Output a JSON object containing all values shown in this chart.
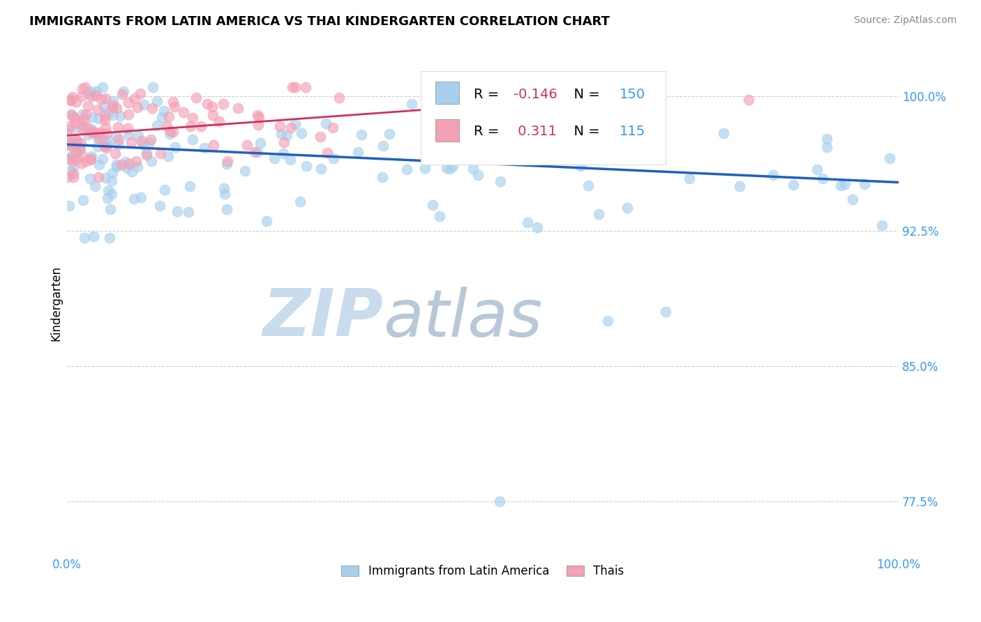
{
  "title": "IMMIGRANTS FROM LATIN AMERICA VS THAI KINDERGARTEN CORRELATION CHART",
  "source_text": "Source: ZipAtlas.com",
  "ylabel": "Kindergarten",
  "xlim": [
    0.0,
    1.0
  ],
  "ylim": [
    0.745,
    1.025
  ],
  "yticks": [
    0.775,
    0.85,
    0.925,
    1.0
  ],
  "ytick_labels": [
    "77.5%",
    "85.0%",
    "92.5%",
    "100.0%"
  ],
  "xtick_labels": [
    "0.0%",
    "100.0%"
  ],
  "legend_entries": [
    {
      "label": "Immigrants from Latin America",
      "color": "#A8D0EE"
    },
    {
      "label": "Thais",
      "color": "#F4A0B5"
    }
  ],
  "r_blue": -0.146,
  "n_blue": 150,
  "r_pink": 0.311,
  "n_pink": 115,
  "blue_color": "#A8D0EE",
  "pink_color": "#F4A0B5",
  "blue_line_color": "#2060C0",
  "pink_line_color": "#D03060",
  "tick_color": "#3399FF",
  "watermark_color": "#C8DCEE",
  "background_color": "#ffffff",
  "blue_trend_x0": 0.0,
  "blue_trend_y0": 0.973,
  "blue_trend_x1": 1.0,
  "blue_trend_y1": 0.952,
  "pink_trend_x0": 0.0,
  "pink_trend_y0": 0.978,
  "pink_trend_x1": 0.45,
  "pink_trend_y1": 0.993
}
